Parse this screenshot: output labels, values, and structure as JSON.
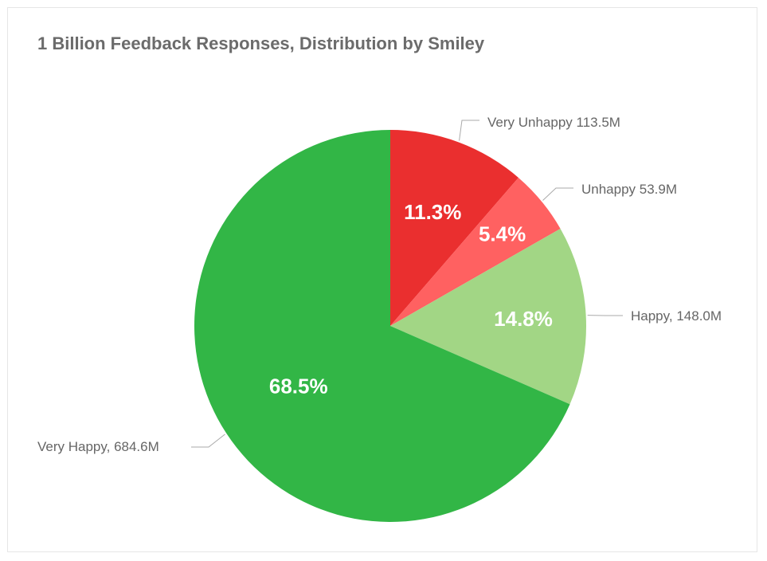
{
  "chart_data": {
    "type": "pie",
    "title": "1 Billion Feedback Responses, Distribution by Smiley",
    "slices": [
      {
        "label": "Very Unhappy 113.5M",
        "value": 113.5,
        "percent_label": "11.3%",
        "color": "#ea2f2f"
      },
      {
        "label": "Unhappy 53.9M",
        "value": 53.9,
        "percent_label": "5.4%",
        "color": "#ff6161"
      },
      {
        "label": "Happy, 148.0M",
        "value": 148.0,
        "percent_label": "14.8%",
        "color": "#a2d685"
      },
      {
        "label": "Very Happy, 684.6M",
        "value": 684.6,
        "percent_label": "68.5%",
        "color": "#32b646"
      }
    ],
    "start_angle_deg": 0,
    "direction": "clockwise"
  }
}
